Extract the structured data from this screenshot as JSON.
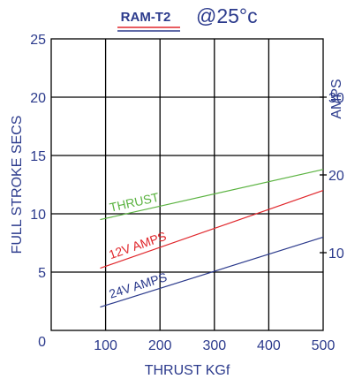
{
  "header": {
    "model": "RAM-T2",
    "condition": "@25°c"
  },
  "chart_data": {
    "type": "line",
    "title": "RAM-T2 @25°c",
    "xlabel": "THRUST KGf",
    "ylabel": "FULL STROKE SECS",
    "y2label": "AMPS",
    "xlim": [
      0,
      500
    ],
    "ylim": [
      0,
      25
    ],
    "y2lim": [
      0,
      37.5
    ],
    "x_ticks": [
      "0",
      "100",
      "200",
      "300",
      "400",
      "500"
    ],
    "y_ticks": [
      "0",
      "5",
      "10",
      "15",
      "20",
      "25"
    ],
    "y2_ticks": [
      "10",
      "20",
      "30"
    ],
    "grid": true,
    "series": [
      {
        "name": "THRUST",
        "axis": "left",
        "color": "#5bb341",
        "x": [
          90,
          500
        ],
        "y": [
          9.5,
          13.8
        ]
      },
      {
        "name": "12V AMPS",
        "axis": "right",
        "color": "#e0262b",
        "x": [
          90,
          500
        ],
        "y": [
          8.0,
          18.0
        ]
      },
      {
        "name": "24V AMPS",
        "axis": "right",
        "color": "#2b3a8c",
        "x": [
          90,
          500
        ],
        "y": [
          3.0,
          12.0
        ]
      }
    ]
  }
}
